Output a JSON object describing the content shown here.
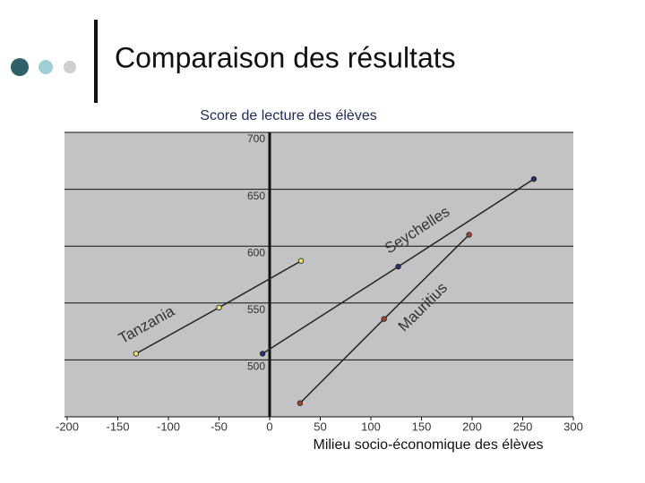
{
  "slide_title": "Comparaison des résultats",
  "chart_data": {
    "type": "line",
    "title": "Score de lecture des élèves",
    "x_label": "Milieu socio-économique des élèves",
    "xlim": [
      -200,
      300
    ],
    "xticks": [
      -200,
      -150,
      -100,
      -50,
      0,
      50,
      100,
      150,
      200,
      250,
      300
    ],
    "ylim": [
      450,
      700
    ],
    "yticks": [
      500,
      550,
      600,
      650,
      700
    ],
    "grid": true,
    "line_color": "#222222",
    "series": [
      {
        "name": "Tanzania",
        "color": "#e8e070",
        "x": [
          -132,
          -50,
          31
        ],
        "values": [
          505.5,
          546,
          587
        ]
      },
      {
        "name": "Seychelles",
        "color": "#2a2f6e",
        "x": [
          -7,
          127,
          261
        ],
        "values": [
          505.5,
          582,
          659
        ]
      },
      {
        "name": "Mauritius",
        "color": "#a0442f",
        "x": [
          30,
          113,
          197
        ],
        "values": [
          462,
          536,
          610
        ]
      }
    ]
  }
}
